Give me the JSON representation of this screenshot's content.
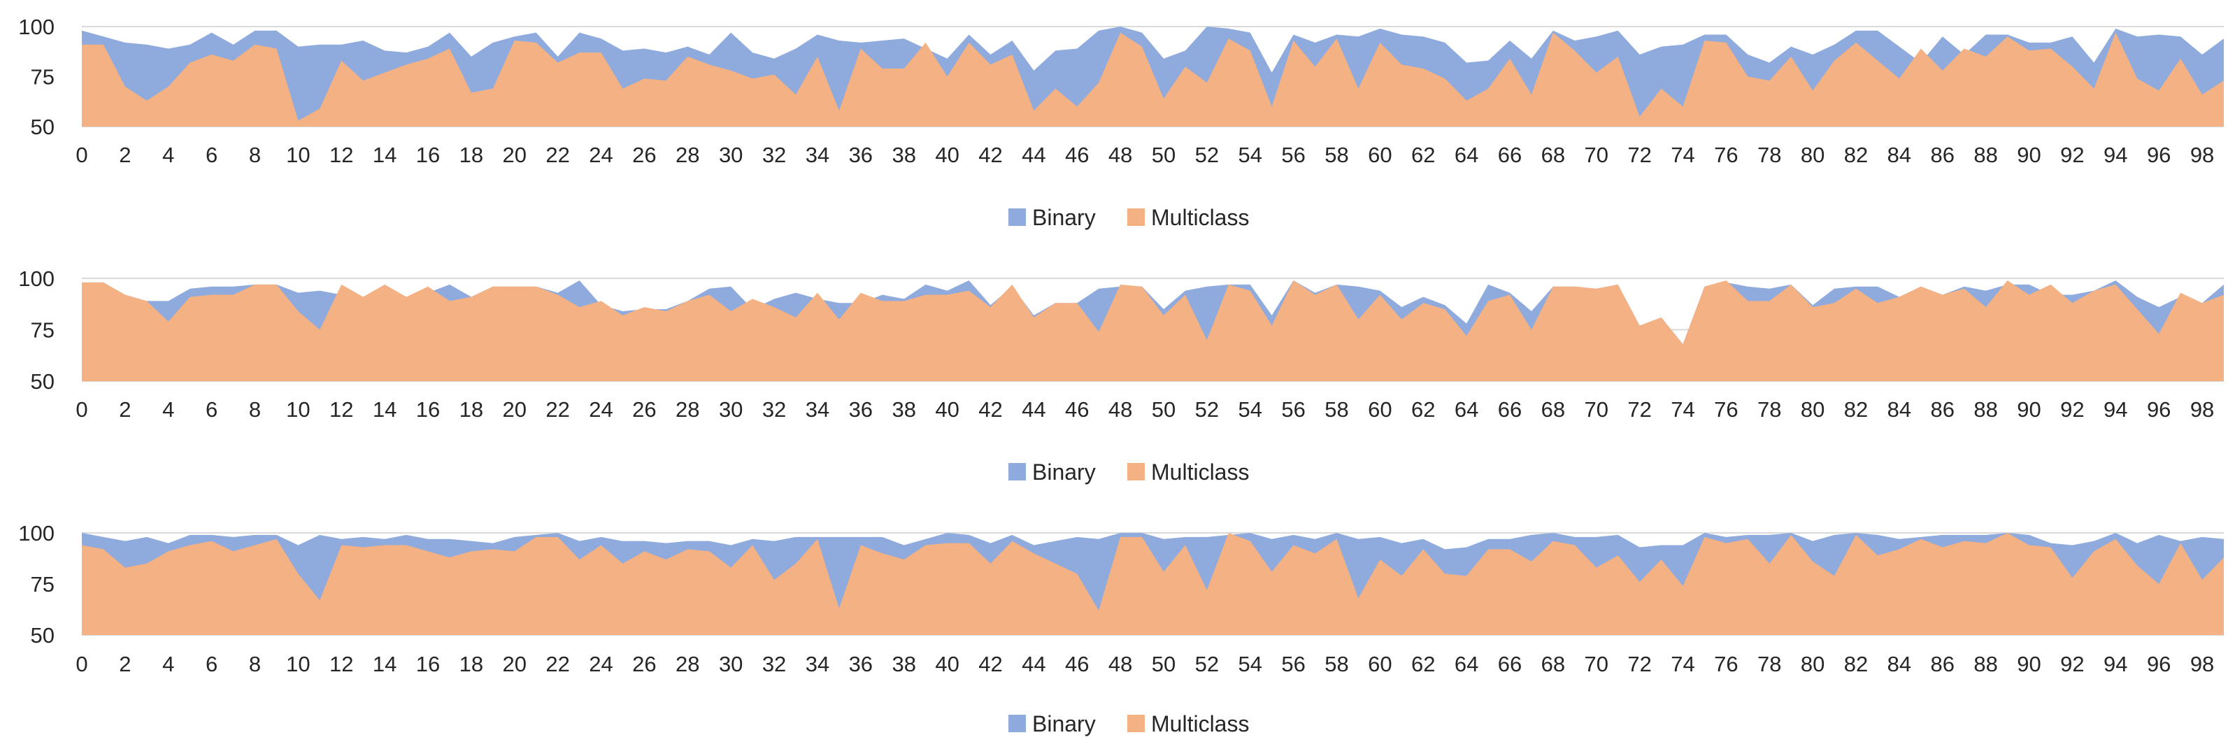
{
  "colors": {
    "binary": "#8FAADC",
    "multiclass": "#F4B183",
    "grid": "#D9D9D9",
    "axis_text": "#262626"
  },
  "chart_data": [
    {
      "type": "area",
      "x": [
        0,
        1,
        2,
        3,
        4,
        5,
        6,
        7,
        8,
        9,
        10,
        11,
        12,
        13,
        14,
        15,
        16,
        17,
        18,
        19,
        20,
        21,
        22,
        23,
        24,
        25,
        26,
        27,
        28,
        29,
        30,
        31,
        32,
        33,
        34,
        35,
        36,
        37,
        38,
        39,
        40,
        41,
        42,
        43,
        44,
        45,
        46,
        47,
        48,
        49,
        50,
        51,
        52,
        53,
        54,
        55,
        56,
        57,
        58,
        59,
        60,
        61,
        62,
        63,
        64,
        65,
        66,
        67,
        68,
        69,
        70,
        71,
        72,
        73,
        74,
        75,
        76,
        77,
        78,
        79,
        80,
        81,
        82,
        83,
        84,
        85,
        86,
        87,
        88,
        89,
        90,
        91,
        92,
        93,
        94,
        95,
        96,
        97,
        98,
        99
      ],
      "ylim": [
        50,
        100
      ],
      "yticks": [
        50,
        75,
        100
      ],
      "xticks": [
        0,
        2,
        4,
        6,
        8,
        10,
        12,
        14,
        16,
        18,
        20,
        22,
        24,
        26,
        28,
        30,
        32,
        34,
        36,
        38,
        40,
        42,
        44,
        46,
        48,
        50,
        52,
        54,
        56,
        58,
        60,
        62,
        64,
        66,
        68,
        70,
        72,
        74,
        76,
        78,
        80,
        82,
        84,
        86,
        88,
        90,
        92,
        94,
        96,
        98
      ],
      "legend_position": "bottom",
      "grid": true,
      "series": [
        {
          "name": "Binary",
          "values": [
            98,
            95,
            92,
            91,
            89,
            91,
            97,
            91,
            98,
            98,
            90,
            91,
            91,
            93,
            88,
            87,
            90,
            97,
            85,
            92,
            95,
            97,
            85,
            97,
            94,
            88,
            89,
            87,
            90,
            86,
            97,
            87,
            84,
            89,
            96,
            93,
            92,
            93,
            94,
            89,
            84,
            96,
            86,
            93,
            78,
            88,
            89,
            98,
            100,
            97,
            84,
            88,
            100,
            99,
            97,
            77,
            96,
            92,
            96,
            95,
            99,
            96,
            95,
            92,
            82,
            83,
            93,
            84,
            98,
            93,
            95,
            98,
            86,
            90,
            91,
            96,
            96,
            86,
            82,
            90,
            86,
            91,
            98,
            98,
            90,
            82,
            95,
            86,
            96,
            96,
            92,
            92,
            95,
            82,
            99,
            95,
            96,
            95,
            86,
            94
          ]
        },
        {
          "name": "Multiclass",
          "values": [
            91,
            91,
            70,
            63,
            70,
            82,
            86,
            83,
            91,
            89,
            53,
            59,
            83,
            73,
            77,
            81,
            84,
            89,
            67,
            69,
            93,
            92,
            82,
            87,
            87,
            69,
            74,
            73,
            85,
            81,
            78,
            74,
            76,
            66,
            85,
            58,
            89,
            79,
            79,
            92,
            75,
            92,
            81,
            86,
            58,
            69,
            60,
            72,
            97,
            90,
            64,
            80,
            72,
            94,
            88,
            60,
            93,
            80,
            94,
            69,
            92,
            81,
            79,
            74,
            63,
            69,
            84,
            66,
            97,
            88,
            77,
            85,
            55,
            69,
            60,
            93,
            92,
            75,
            73,
            85,
            68,
            83,
            92,
            83,
            74,
            89,
            78,
            89,
            85,
            95,
            88,
            89,
            80,
            69,
            97,
            74,
            68,
            84,
            66,
            73
          ]
        }
      ]
    },
    {
      "type": "area",
      "x": [
        0,
        1,
        2,
        3,
        4,
        5,
        6,
        7,
        8,
        9,
        10,
        11,
        12,
        13,
        14,
        15,
        16,
        17,
        18,
        19,
        20,
        21,
        22,
        23,
        24,
        25,
        26,
        27,
        28,
        29,
        30,
        31,
        32,
        33,
        34,
        35,
        36,
        37,
        38,
        39,
        40,
        41,
        42,
        43,
        44,
        45,
        46,
        47,
        48,
        49,
        50,
        51,
        52,
        53,
        54,
        55,
        56,
        57,
        58,
        59,
        60,
        61,
        62,
        63,
        64,
        65,
        66,
        67,
        68,
        69,
        70,
        71,
        72,
        73,
        74,
        75,
        76,
        77,
        78,
        79,
        80,
        81,
        82,
        83,
        84,
        85,
        86,
        87,
        88,
        89,
        90,
        91,
        92,
        93,
        94,
        95,
        96,
        97,
        98,
        99
      ],
      "ylim": [
        50,
        100
      ],
      "yticks": [
        50,
        75,
        100
      ],
      "xticks": [
        0,
        2,
        4,
        6,
        8,
        10,
        12,
        14,
        16,
        18,
        20,
        22,
        24,
        26,
        28,
        30,
        32,
        34,
        36,
        38,
        40,
        42,
        44,
        46,
        48,
        50,
        52,
        54,
        56,
        58,
        60,
        62,
        64,
        66,
        68,
        70,
        72,
        74,
        76,
        78,
        80,
        82,
        84,
        86,
        88,
        90,
        92,
        94,
        96,
        98
      ],
      "legend_position": "bottom",
      "grid": true,
      "series": [
        {
          "name": "Binary",
          "values": [
            98,
            98,
            92,
            89,
            89,
            95,
            96,
            96,
            97,
            97,
            93,
            94,
            92,
            91,
            96,
            91,
            93,
            97,
            91,
            96,
            96,
            96,
            93,
            99,
            87,
            84,
            85,
            85,
            89,
            95,
            96,
            85,
            90,
            93,
            90,
            88,
            88,
            92,
            90,
            97,
            94,
            99,
            87,
            96,
            82,
            88,
            88,
            95,
            96,
            96,
            85,
            94,
            96,
            97,
            97,
            82,
            99,
            93,
            97,
            96,
            94,
            86,
            91,
            87,
            78,
            97,
            93,
            84,
            96,
            96,
            95,
            97,
            77,
            81,
            68,
            96,
            98,
            96,
            95,
            97,
            87,
            95,
            96,
            96,
            91,
            96,
            92,
            96,
            94,
            97,
            97,
            92,
            92,
            94,
            99,
            91,
            86,
            91,
            88,
            97
          ]
        },
        {
          "name": "Multiclass",
          "values": [
            98,
            98,
            92,
            89,
            79,
            91,
            92,
            92,
            97,
            97,
            84,
            75,
            97,
            91,
            97,
            91,
            96,
            89,
            91,
            96,
            96,
            96,
            92,
            86,
            89,
            82,
            86,
            84,
            89,
            92,
            84,
            90,
            86,
            81,
            93,
            80,
            93,
            89,
            89,
            92,
            92,
            94,
            86,
            97,
            81,
            88,
            88,
            74,
            97,
            96,
            82,
            92,
            70,
            97,
            94,
            77,
            99,
            92,
            97,
            80,
            92,
            80,
            88,
            85,
            72,
            89,
            92,
            75,
            96,
            96,
            95,
            97,
            77,
            81,
            68,
            96,
            99,
            89,
            89,
            97,
            86,
            88,
            95,
            88,
            91,
            96,
            92,
            95,
            86,
            99,
            92,
            97,
            88,
            94,
            97,
            85,
            73,
            93,
            88,
            92
          ]
        }
      ]
    },
    {
      "type": "area",
      "x": [
        0,
        1,
        2,
        3,
        4,
        5,
        6,
        7,
        8,
        9,
        10,
        11,
        12,
        13,
        14,
        15,
        16,
        17,
        18,
        19,
        20,
        21,
        22,
        23,
        24,
        25,
        26,
        27,
        28,
        29,
        30,
        31,
        32,
        33,
        34,
        35,
        36,
        37,
        38,
        39,
        40,
        41,
        42,
        43,
        44,
        45,
        46,
        47,
        48,
        49,
        50,
        51,
        52,
        53,
        54,
        55,
        56,
        57,
        58,
        59,
        60,
        61,
        62,
        63,
        64,
        65,
        66,
        67,
        68,
        69,
        70,
        71,
        72,
        73,
        74,
        75,
        76,
        77,
        78,
        79,
        80,
        81,
        82,
        83,
        84,
        85,
        86,
        87,
        88,
        89,
        90,
        91,
        92,
        93,
        94,
        95,
        96,
        97,
        98,
        99
      ],
      "ylim": [
        50,
        100
      ],
      "yticks": [
        50,
        75,
        100
      ],
      "xticks": [
        0,
        2,
        4,
        6,
        8,
        10,
        12,
        14,
        16,
        18,
        20,
        22,
        24,
        26,
        28,
        30,
        32,
        34,
        36,
        38,
        40,
        42,
        44,
        46,
        48,
        50,
        52,
        54,
        56,
        58,
        60,
        62,
        64,
        66,
        68,
        70,
        72,
        74,
        76,
        78,
        80,
        82,
        84,
        86,
        88,
        90,
        92,
        94,
        96,
        98
      ],
      "legend_position": "bottom",
      "grid": true,
      "series": [
        {
          "name": "Binary",
          "values": [
            100,
            98,
            96,
            98,
            95,
            99,
            99,
            98,
            99,
            99,
            94,
            99,
            97,
            98,
            97,
            99,
            97,
            97,
            96,
            95,
            98,
            99,
            100,
            96,
            98,
            96,
            96,
            95,
            96,
            96,
            94,
            97,
            96,
            98,
            98,
            98,
            98,
            98,
            94,
            97,
            100,
            99,
            95,
            99,
            94,
            96,
            98,
            97,
            100,
            100,
            97,
            98,
            98,
            99,
            100,
            97,
            99,
            97,
            100,
            97,
            98,
            95,
            97,
            92,
            93,
            97,
            97,
            99,
            100,
            98,
            98,
            99,
            93,
            94,
            94,
            100,
            98,
            99,
            99,
            100,
            96,
            99,
            100,
            99,
            97,
            98,
            99,
            99,
            99,
            100,
            99,
            95,
            94,
            96,
            100,
            95,
            99,
            96,
            98,
            97
          ]
        },
        {
          "name": "Multiclass",
          "values": [
            94,
            92,
            83,
            85,
            91,
            94,
            96,
            91,
            94,
            97,
            80,
            67,
            94,
            93,
            94,
            94,
            91,
            88,
            91,
            92,
            91,
            98,
            98,
            87,
            94,
            85,
            91,
            87,
            92,
            91,
            83,
            94,
            77,
            85,
            97,
            63,
            94,
            90,
            87,
            94,
            95,
            95,
            85,
            96,
            90,
            85,
            80,
            62,
            98,
            98,
            81,
            94,
            72,
            100,
            96,
            81,
            94,
            90,
            97,
            68,
            87,
            79,
            92,
            80,
            79,
            92,
            92,
            86,
            96,
            94,
            83,
            89,
            76,
            87,
            74,
            98,
            95,
            97,
            85,
            99,
            86,
            79,
            99,
            89,
            92,
            97,
            93,
            96,
            95,
            100,
            94,
            93,
            78,
            91,
            97,
            84,
            75,
            95,
            77,
            88
          ]
        }
      ]
    }
  ]
}
